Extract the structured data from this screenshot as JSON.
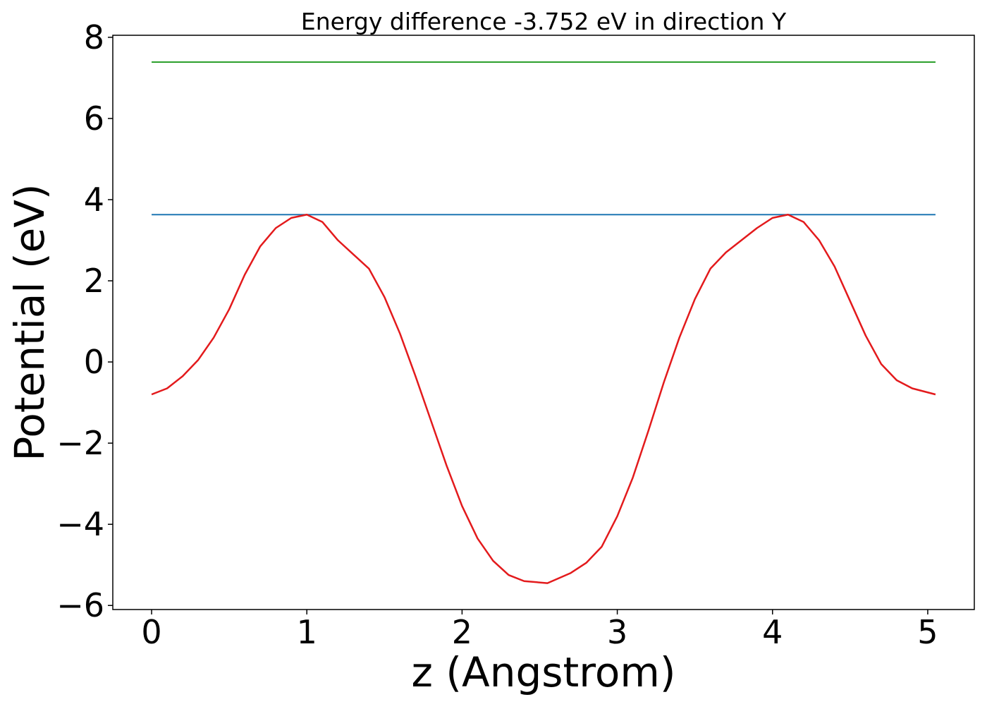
{
  "chart_data": {
    "type": "line",
    "title": "Energy difference -3.752 eV in direction Y",
    "xlabel": "z (Angstrom)",
    "ylabel": "Potential (eV)",
    "xlim": [
      -0.25,
      5.3
    ],
    "ylim": [
      -6.1,
      8.05
    ],
    "x_ticks": [
      0,
      1,
      2,
      3,
      4,
      5
    ],
    "x_tick_labels": [
      "0",
      "1",
      "2",
      "3",
      "4",
      "5"
    ],
    "y_ticks": [
      -6,
      -4,
      -2,
      0,
      2,
      4,
      6,
      8
    ],
    "y_tick_labels": [
      "−6",
      "−4",
      "−2",
      "0",
      "2",
      "4",
      "6",
      "8"
    ],
    "grid": false,
    "legend": "none",
    "series": [
      {
        "color": "#2ca02c",
        "x": [
          0,
          5.05
        ],
        "y": [
          7.39,
          7.39
        ]
      },
      {
        "color": "#1f77b4",
        "x": [
          0,
          5.05
        ],
        "y": [
          3.63,
          3.63
        ]
      },
      {
        "color": "#e31a1c",
        "x": [
          0,
          0.1,
          0.2,
          0.3,
          0.4,
          0.5,
          0.6,
          0.7,
          0.8,
          0.9,
          1.0,
          1.1,
          1.2,
          1.3,
          1.4,
          1.5,
          1.6,
          1.7,
          1.8,
          1.9,
          2.0,
          2.1,
          2.2,
          2.3,
          2.4,
          2.55,
          2.7,
          2.8,
          2.9,
          3.0,
          3.1,
          3.2,
          3.3,
          3.4,
          3.5,
          3.6,
          3.7,
          3.8,
          3.9,
          4.0,
          4.1,
          4.2,
          4.3,
          4.4,
          4.5,
          4.6,
          4.7,
          4.8,
          4.9,
          5.0,
          5.05
        ],
        "y": [
          -0.8,
          -0.65,
          -0.35,
          0.05,
          0.6,
          1.3,
          2.15,
          2.85,
          3.3,
          3.55,
          3.63,
          3.45,
          3.0,
          2.65,
          2.3,
          1.6,
          0.7,
          -0.35,
          -1.45,
          -2.55,
          -3.55,
          -4.35,
          -4.9,
          -5.25,
          -5.4,
          -5.45,
          -5.2,
          -4.95,
          -4.55,
          -3.8,
          -2.85,
          -1.7,
          -0.5,
          0.6,
          1.55,
          2.3,
          2.7,
          3.0,
          3.3,
          3.55,
          3.63,
          3.45,
          3.0,
          2.35,
          1.5,
          0.65,
          -0.05,
          -0.45,
          -0.65,
          -0.75,
          -0.8
        ]
      }
    ]
  }
}
